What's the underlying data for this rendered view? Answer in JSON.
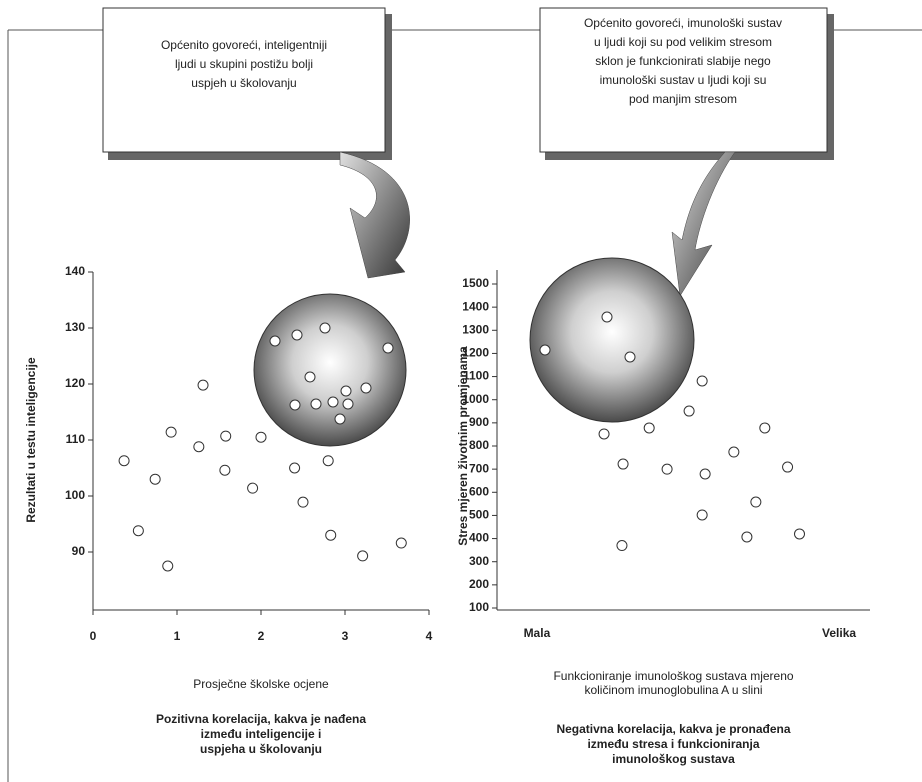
{
  "chart_data": [
    {
      "type": "scatter",
      "callout": [
        "Općenito govoreći, inteligentniji",
        "ljudi u skupini postižu bolji",
        "uspjeh u školovanju"
      ],
      "ylabel": "Rezultati u testu inteligencije",
      "xlabel": [
        "Prosječne školske ocjene"
      ],
      "caption": [
        "Pozitivna korelacija, kakva je nađena",
        "između inteligencije i",
        "uspjeha u školovanju"
      ],
      "x": [
        0.37,
        0.54,
        0.74,
        0.89,
        0.93,
        1.31,
        1.26,
        1.58,
        1.57,
        1.9,
        2.0,
        2.4,
        2.5,
        2.8,
        2.83,
        3.21,
        3.67
      ],
      "values": [
        106.3,
        93.8,
        103,
        87.5,
        111.4,
        119.8,
        108.8,
        110.7,
        104.6,
        101.4,
        110.5,
        105,
        98.9,
        106.3,
        93,
        89.3,
        91.6
      ],
      "color": "#ffffff",
      "xlim": [
        0,
        4
      ],
      "xticks": [
        0,
        1,
        2,
        3,
        4
      ],
      "ylim": [
        80,
        140
      ],
      "yticks": [
        90,
        100,
        110,
        120,
        130,
        140
      ]
    },
    {
      "type": "scatter",
      "callout": [
        "Općenito govoreći, imunološki sustav",
        "u ljudi koji su pod velikim stresom",
        "sklon je funkcionirati slabije nego",
        "imunološki sustav u ljudi koji su",
        "pod manjim stresom"
      ],
      "ylabel": "Stres mjeren životnim promjenama",
      "xlabel": [
        "Funkcioniranje imunološkog sustava mjereno",
        "količinom imunoglobulina A u slini"
      ],
      "caption": [
        "Negativna korelacija, kakva je pronađena",
        "između stresa i funkcioniranja",
        "imunološkog sustava"
      ],
      "x": [
        28.7,
        33.8,
        33.5,
        40.8,
        45.6,
        51.5,
        55,
        55.8,
        55,
        63.5,
        67,
        69.4,
        71.8,
        77.9,
        81.1
      ],
      "values": [
        852,
        722,
        370,
        878,
        700,
        951,
        1081,
        679,
        502,
        774,
        407,
        558,
        878,
        709,
        420
      ],
      "color": "#ffffff",
      "xlim": [
        0,
        100
      ],
      "xticks": [
        {
          "value": 10.7,
          "label": "Mala"
        },
        {
          "value": 91.7,
          "label": "Velika"
        }
      ],
      "ylim": [
        100,
        1500
      ],
      "yticks": [
        100,
        200,
        300,
        400,
        500,
        600,
        700,
        800,
        900,
        1000,
        1100,
        1200,
        1300,
        1400,
        1500
      ]
    }
  ]
}
